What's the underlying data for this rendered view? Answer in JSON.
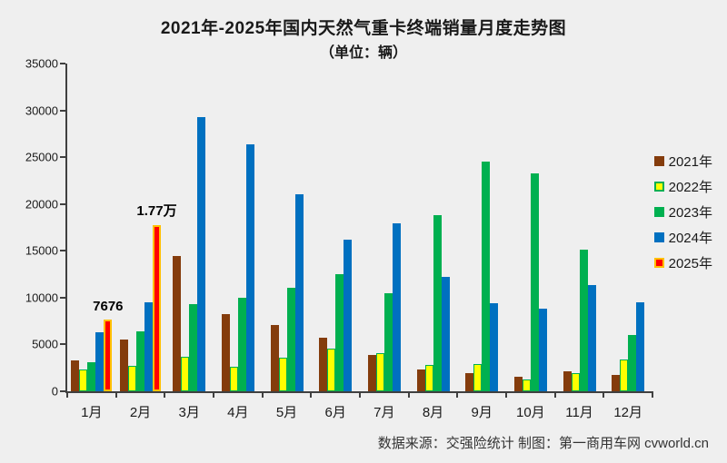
{
  "chart": {
    "title": "2021年-2025年国内天然气重卡终端销量月度走势图",
    "subtitle": "（单位：辆）",
    "source_note": "数据来源：交强险统计  制图：第一商用车网 cvworld.cn"
  },
  "chart_data": {
    "type": "bar",
    "title": "2021年-2025年国内天然气重卡终端销量月度走势图",
    "subtitle": "（单位：辆）",
    "background_color": "#EFEFEF",
    "axis_color": "#404040",
    "grid": false,
    "legend_position": "right",
    "categories": [
      "1月",
      "2月",
      "3月",
      "4月",
      "5月",
      "6月",
      "7月",
      "8月",
      "9月",
      "10月",
      "11月",
      "12月"
    ],
    "y_axis": {
      "min": 0,
      "max": 35000,
      "step": 5000
    },
    "series": [
      {
        "name": "2021年",
        "color": "#843C0C",
        "border_color": null,
        "values": [
          3300,
          5500,
          14400,
          8200,
          7100,
          5700,
          3900,
          2300,
          1900,
          1600,
          2100,
          1700
        ]
      },
      {
        "name": "2022年",
        "color": "#FFFF00",
        "border_color": "#00B050",
        "values": [
          2300,
          2700,
          3700,
          2600,
          3600,
          4600,
          4100,
          2800,
          2900,
          1300,
          1900,
          3400
        ]
      },
      {
        "name": "2023年",
        "color": "#00B050",
        "border_color": null,
        "values": [
          3100,
          6400,
          9300,
          10000,
          11100,
          12500,
          10500,
          18800,
          24500,
          23300,
          15100,
          6000
        ]
      },
      {
        "name": "2024年",
        "color": "#0070C0",
        "border_color": null,
        "values": [
          6300,
          9500,
          29300,
          26400,
          21000,
          16200,
          17900,
          12200,
          9400,
          8800,
          11300,
          9500
        ]
      },
      {
        "name": "2025年",
        "color": "#FF0000",
        "border_color": "#FFC000",
        "values": [
          7676,
          17700,
          null,
          null,
          null,
          null,
          null,
          null,
          null,
          null,
          null,
          null
        ]
      }
    ],
    "annotations": [
      {
        "series": "2025年",
        "category": "1月",
        "text": "7676"
      },
      {
        "series": "2025年",
        "category": "2月",
        "text": "1.77万"
      }
    ]
  }
}
